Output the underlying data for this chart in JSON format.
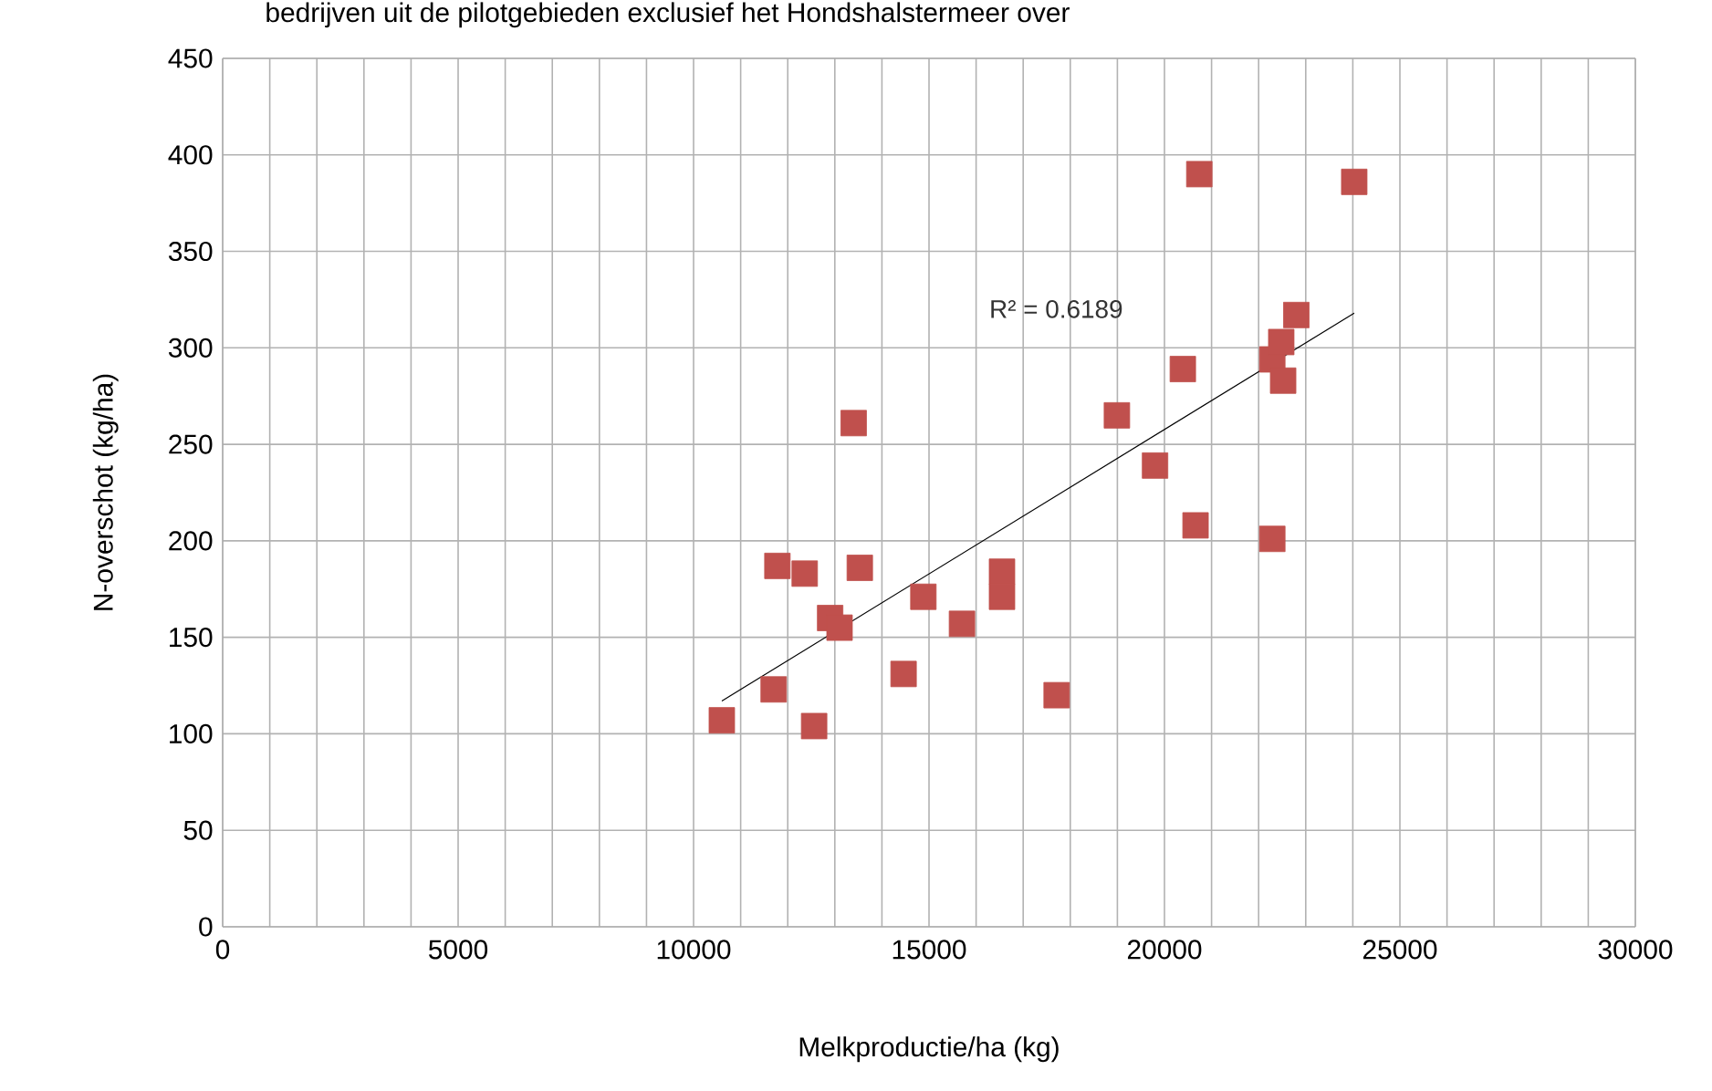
{
  "chart_data": {
    "type": "scatter",
    "title": "bedrijven uit de pilotgebieden exclusief het Hondshalstermeer over",
    "xlabel": "Melkproductie/ha (kg)",
    "ylabel": "N-overschot (kg/ha)",
    "series": [
      {
        "color": "#c0504d",
        "marker": "square",
        "x": [
          10600,
          11700,
          11780,
          12360,
          12560,
          12900,
          13100,
          13400,
          13530,
          14460,
          14880,
          15700,
          16550,
          16550,
          17710,
          18990,
          19800,
          20390,
          20660,
          20740,
          22290,
          22290,
          22480,
          22520,
          22800,
          24030
        ],
        "values": [
          107,
          123,
          187,
          183,
          104,
          160,
          155,
          261,
          186,
          131,
          171,
          157,
          184,
          171,
          120,
          265,
          239,
          289,
          208,
          390,
          201,
          294,
          303,
          283,
          317,
          386
        ]
      },
      {
        "type": "line",
        "color": "#000000",
        "marker": "none",
        "x": [
          10600,
          24030
        ],
        "values": [
          117,
          318
        ]
      }
    ],
    "annotations": [
      "R² = 0.6189"
    ],
    "xlim": [
      0,
      30000
    ],
    "xticks": [
      0,
      5000,
      10000,
      15000,
      20000,
      25000,
      30000
    ],
    "ylim": [
      0,
      450
    ],
    "yticks": [
      0,
      50,
      100,
      150,
      200,
      250,
      300,
      350,
      400,
      450
    ],
    "grid": true
  }
}
